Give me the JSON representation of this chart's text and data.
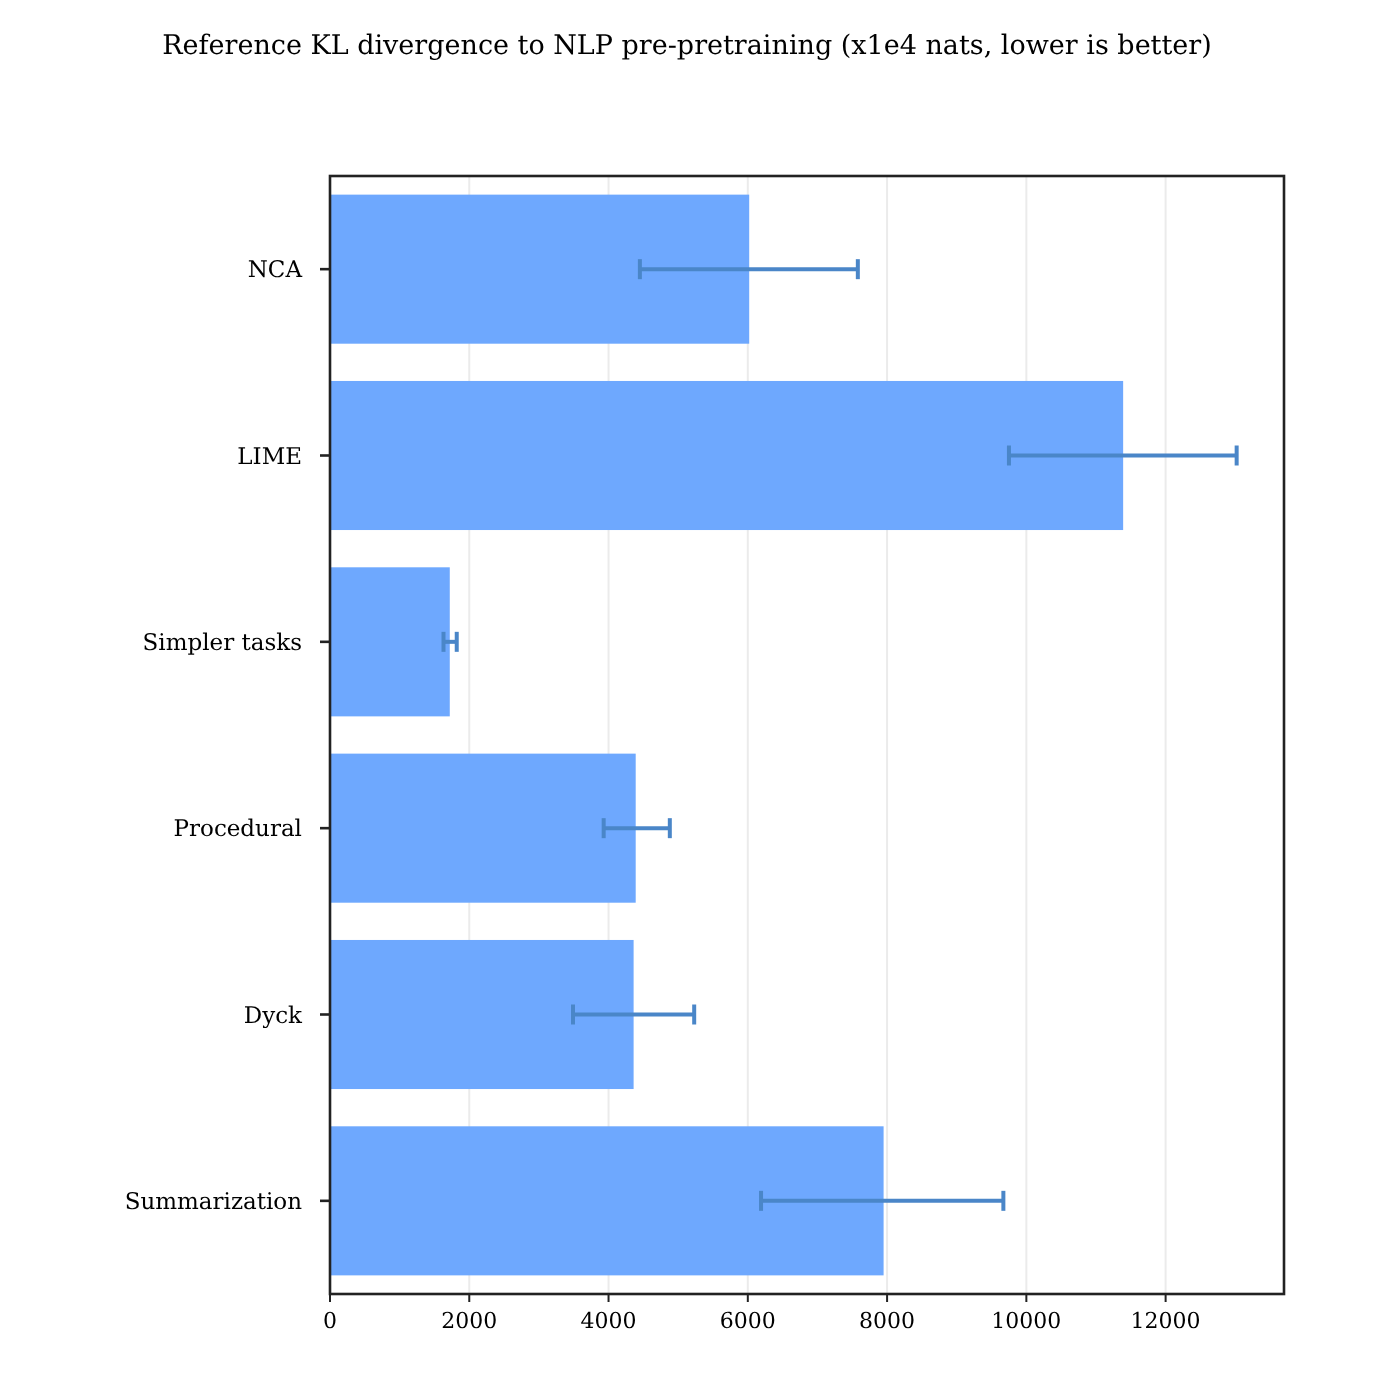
{
  "chart_data": {
    "type": "bar",
    "orientation": "horizontal",
    "title": "Reference KL divergence to NLP pre-pretraining (x1e4 nats, lower is better)",
    "categories": [
      "NCA",
      "LIME",
      "Simpler tasks",
      "Procedural",
      "Dyck",
      "Summarization"
    ],
    "values": [
      6020,
      11390,
      1720,
      4390,
      4360,
      7950
    ],
    "errors": [
      [
        4450,
        7580
      ],
      [
        9750,
        13020
      ],
      [
        1630,
        1820
      ],
      [
        3930,
        4880
      ],
      [
        3490,
        5230
      ],
      [
        6190,
        9670
      ]
    ],
    "color": "#6ea8fe",
    "xlim": [
      0,
      13700
    ],
    "xticks": [
      0,
      2000,
      4000,
      6000,
      8000,
      10000,
      12000
    ],
    "grid": "x"
  }
}
